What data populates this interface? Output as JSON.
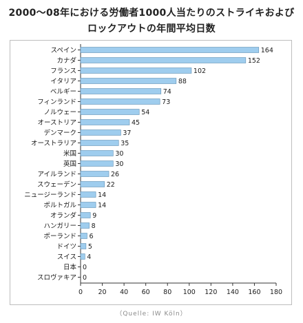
{
  "chart_data": {
    "type": "bar",
    "orientation": "horizontal",
    "title": "2000〜08年における労働者1000人当たりのストライキおよびロックアウトの年間平均日数",
    "title_lines": [
      "2000〜08年における労働者1000人当たりのストライキおよび",
      "ロックアウトの年間平均日数"
    ],
    "categories": [
      "スペイン",
      "カナダ",
      "フランス",
      "イタリア",
      "ベルギー",
      "フィンランド",
      "ノルウェー",
      "オーストリア",
      "デンマーク",
      "オーストラリア",
      "米国",
      "英国",
      "アイルランド",
      "スウェーデン",
      "ニュージーランド",
      "ポルトガル",
      "オランダ",
      "ハンガリー",
      "ポーランド",
      "ドイツ",
      "スイス",
      "日本",
      "スロヴァキア"
    ],
    "values": [
      164,
      152,
      102,
      88,
      74,
      73,
      54,
      45,
      37,
      35,
      30,
      30,
      26,
      22,
      14,
      14,
      9,
      8,
      6,
      5,
      4,
      0,
      0
    ],
    "xlim": [
      0,
      180
    ],
    "xticks": [
      0,
      20,
      40,
      60,
      80,
      100,
      120,
      140,
      160,
      180
    ],
    "xlabel": "",
    "ylabel": "",
    "grid": false,
    "bar_color": "#9fcdee",
    "bar_edge_color": "#5f8fb3",
    "source": "（Quelle: IW Köln）"
  }
}
